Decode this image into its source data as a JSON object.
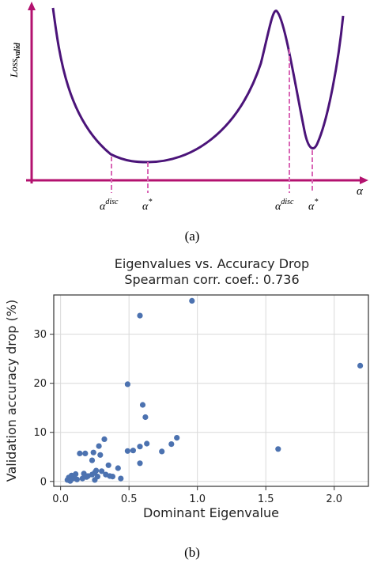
{
  "colors": {
    "axis": "#b3126f",
    "curve": "#4b1479",
    "marker": "#d966b5",
    "points": "#4c72b0",
    "grid": "#d9d9d9",
    "frame": "#333333"
  },
  "chart_data": [
    {
      "type": "line",
      "panel_label": "(a)",
      "ylabel": "Loss_valid",
      "xlabel": "α",
      "markers": [
        {
          "label": "α^disc"
        },
        {
          "label": "α*"
        },
        {
          "label": "α^disc"
        },
        {
          "label": "α*"
        }
      ]
    },
    {
      "type": "scatter",
      "panel_label": "(b)",
      "title": "Eigenvalues vs. Accuracy Drop",
      "subtitle": "Spearman corr. coef.: 0.736",
      "xlabel": "Dominant Eigenvalue",
      "ylabel": "Validation accuracy drop (%)",
      "xlim": [
        -0.05,
        2.25
      ],
      "ylim": [
        -1.0,
        38.0
      ],
      "xticks": [
        "0.0",
        "0.5",
        "1.0",
        "1.5",
        "2.0"
      ],
      "xtick_values": [
        0.0,
        0.5,
        1.0,
        1.5,
        2.0
      ],
      "yticks": [
        "0",
        "10",
        "20",
        "30"
      ],
      "ytick_values": [
        0,
        10,
        20,
        30
      ],
      "grid": true,
      "points": [
        {
          "x": 0.05,
          "y": 0.3
        },
        {
          "x": 0.06,
          "y": 0.8
        },
        {
          "x": 0.07,
          "y": 0.1
        },
        {
          "x": 0.08,
          "y": 1.2
        },
        {
          "x": 0.09,
          "y": 0.6
        },
        {
          "x": 0.1,
          "y": 0.9
        },
        {
          "x": 0.11,
          "y": 1.5
        },
        {
          "x": 0.12,
          "y": 0.4
        },
        {
          "x": 0.14,
          "y": 5.7
        },
        {
          "x": 0.16,
          "y": 0.6
        },
        {
          "x": 0.17,
          "y": 1.6
        },
        {
          "x": 0.18,
          "y": 5.7
        },
        {
          "x": 0.19,
          "y": 0.9
        },
        {
          "x": 0.2,
          "y": 1.1
        },
        {
          "x": 0.23,
          "y": 4.3
        },
        {
          "x": 0.23,
          "y": 1.4
        },
        {
          "x": 0.24,
          "y": 5.9
        },
        {
          "x": 0.25,
          "y": 0.3
        },
        {
          "x": 0.25,
          "y": 1.8
        },
        {
          "x": 0.26,
          "y": 2.2
        },
        {
          "x": 0.27,
          "y": 1.0
        },
        {
          "x": 0.28,
          "y": 7.2
        },
        {
          "x": 0.29,
          "y": 5.4
        },
        {
          "x": 0.3,
          "y": 2.1
        },
        {
          "x": 0.32,
          "y": 8.6
        },
        {
          "x": 0.33,
          "y": 1.4
        },
        {
          "x": 0.35,
          "y": 3.3
        },
        {
          "x": 0.36,
          "y": 1.1
        },
        {
          "x": 0.38,
          "y": 1.0
        },
        {
          "x": 0.42,
          "y": 2.7
        },
        {
          "x": 0.44,
          "y": 0.6
        },
        {
          "x": 0.49,
          "y": 6.2
        },
        {
          "x": 0.49,
          "y": 19.8
        },
        {
          "x": 0.53,
          "y": 6.3
        },
        {
          "x": 0.58,
          "y": 3.7
        },
        {
          "x": 0.58,
          "y": 7.1
        },
        {
          "x": 0.58,
          "y": 33.8
        },
        {
          "x": 0.6,
          "y": 15.6
        },
        {
          "x": 0.62,
          "y": 13.1
        },
        {
          "x": 0.63,
          "y": 7.7
        },
        {
          "x": 0.74,
          "y": 6.1
        },
        {
          "x": 0.81,
          "y": 7.6
        },
        {
          "x": 0.85,
          "y": 8.9
        },
        {
          "x": 0.96,
          "y": 36.8
        },
        {
          "x": 1.59,
          "y": 6.6
        },
        {
          "x": 2.19,
          "y": 23.6
        }
      ]
    }
  ]
}
